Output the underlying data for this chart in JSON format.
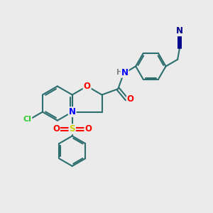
{
  "background_color": "#ebebeb",
  "figsize": [
    3.0,
    3.0
  ],
  "dpi": 100,
  "atom_colors": {
    "C": "#2d6e6e",
    "N": "#0000ff",
    "O": "#ff0000",
    "S": "#cccc00",
    "Cl": "#33cc33",
    "H": "#808080",
    "CN_N": "#00008b"
  },
  "bond_color": "#2d6e6e",
  "bond_width": 1.5
}
